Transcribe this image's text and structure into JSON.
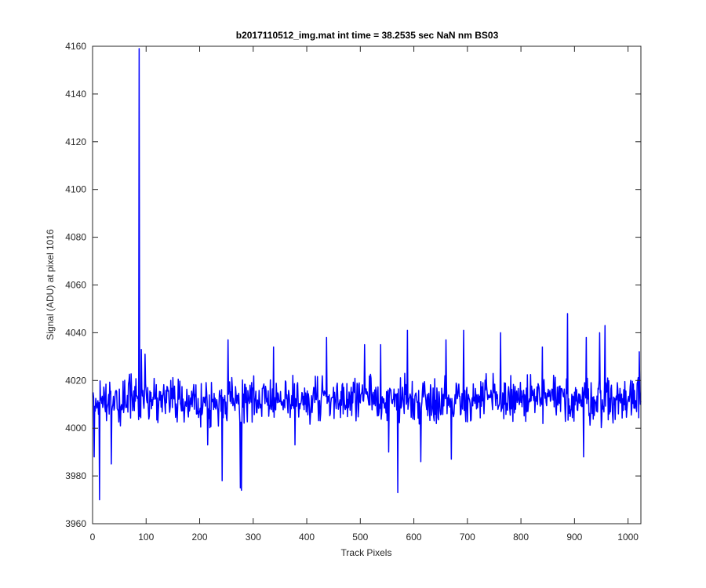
{
  "chart_data": {
    "type": "line",
    "title": "b2017110512_img.mat int time = 38.2535 sec  NaN nm BS03",
    "xlabel": "Track Pixels",
    "ylabel": "Signal (ADU) at pixel 1016",
    "xlim": [
      0,
      1024
    ],
    "ylim": [
      3960,
      4160
    ],
    "xticks": [
      0,
      100,
      200,
      300,
      400,
      500,
      600,
      700,
      800,
      900,
      1000
    ],
    "yticks": [
      3960,
      3980,
      4000,
      4020,
      4040,
      4060,
      4080,
      4100,
      4120,
      4140,
      4160
    ],
    "grid": false,
    "legend": "none",
    "series": [
      {
        "color": "#0000ff",
        "baseline": 4011,
        "noise_range": [
          3998,
          4026
        ],
        "count": 1024,
        "x_start": 1,
        "spikes": [
          {
            "x": 3,
            "y": 3988
          },
          {
            "x": 13,
            "y": 3970
          },
          {
            "x": 35,
            "y": 3985
          },
          {
            "x": 87,
            "y": 4159
          },
          {
            "x": 91,
            "y": 4033
          },
          {
            "x": 98,
            "y": 4031
          },
          {
            "x": 215,
            "y": 3993
          },
          {
            "x": 242,
            "y": 3978
          },
          {
            "x": 253,
            "y": 4037
          },
          {
            "x": 276,
            "y": 3975
          },
          {
            "x": 278,
            "y": 3974
          },
          {
            "x": 338,
            "y": 4034
          },
          {
            "x": 378,
            "y": 3993
          },
          {
            "x": 437,
            "y": 4038
          },
          {
            "x": 508,
            "y": 4035
          },
          {
            "x": 538,
            "y": 4035
          },
          {
            "x": 553,
            "y": 3990
          },
          {
            "x": 570,
            "y": 3973
          },
          {
            "x": 588,
            "y": 4041
          },
          {
            "x": 613,
            "y": 3986
          },
          {
            "x": 660,
            "y": 4037
          },
          {
            "x": 670,
            "y": 3987
          },
          {
            "x": 693,
            "y": 4041
          },
          {
            "x": 762,
            "y": 4040
          },
          {
            "x": 840,
            "y": 4034
          },
          {
            "x": 887,
            "y": 4048
          },
          {
            "x": 917,
            "y": 3988
          },
          {
            "x": 922,
            "y": 4038
          },
          {
            "x": 947,
            "y": 4040
          },
          {
            "x": 957,
            "y": 4043
          },
          {
            "x": 1005,
            "y": 4020
          },
          {
            "x": 1021,
            "y": 4032
          }
        ]
      }
    ]
  }
}
